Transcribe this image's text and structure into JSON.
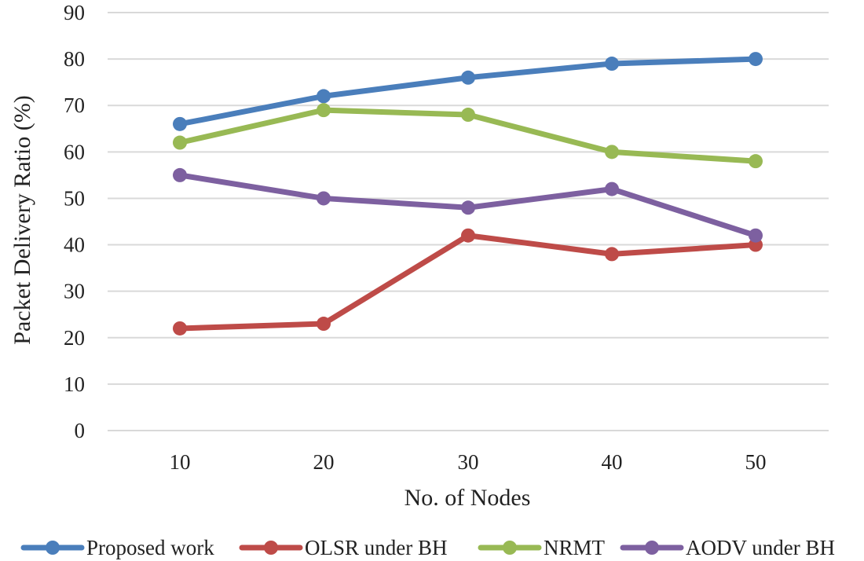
{
  "chart_data": {
    "type": "line",
    "title": "",
    "xlabel": "No. of Nodes",
    "ylabel": "Packet Delivery Ratio (%)",
    "categories": [
      "10",
      "20",
      "30",
      "40",
      "50"
    ],
    "ylim": [
      0,
      90
    ],
    "yticks": [
      0,
      10,
      20,
      30,
      40,
      50,
      60,
      70,
      80,
      90
    ],
    "grid": true,
    "legend_position": "bottom",
    "series": [
      {
        "name": "Proposed work",
        "color": "#4a7ebb",
        "values": [
          66,
          72,
          76,
          79,
          80
        ]
      },
      {
        "name": "OLSR under BH",
        "color": "#be4b48",
        "values": [
          22,
          23,
          42,
          38,
          40
        ]
      },
      {
        "name": "NRMT",
        "color": "#98b954",
        "values": [
          62,
          69,
          68,
          60,
          58
        ]
      },
      {
        "name": "AODV under BH",
        "color": "#7d60a0",
        "values": [
          55,
          50,
          48,
          52,
          42
        ]
      }
    ]
  }
}
